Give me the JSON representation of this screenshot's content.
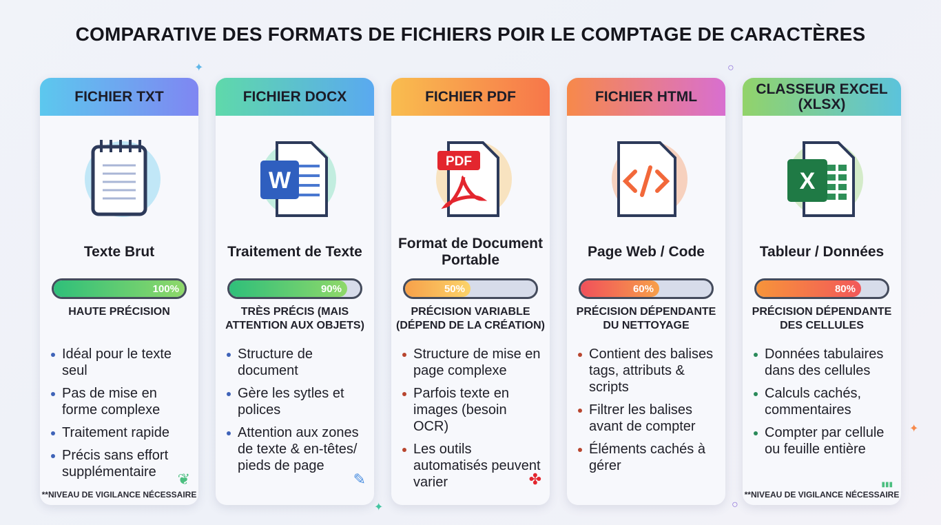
{
  "title": "COMPARATIVE DES FORMATS DE FICHIERS POIR LE COMPTAGE DE CARACTÈRES",
  "cards": [
    {
      "header": "FICHIER TXT",
      "icon": "notepad-icon",
      "subtitle": "Texte Brut",
      "percent": 100,
      "percent_label": "100%",
      "precision": "HAUTE PRÉCISION",
      "bullets": [
        "Idéal pour le texte seul",
        "Pas de mise en forme complexe",
        "Traitement rapide",
        "Précis sans effort supplémentaire"
      ],
      "footer": "**NIVEAU DE VIGILANCE NÉCESSAIRE",
      "corner_icon": "feather-icon",
      "bullet_color": "#3f63b8",
      "head_colors": [
        "#5cc8ee",
        "#7f86f2"
      ],
      "bar_colors": [
        "#2fbf7a",
        "#8fd86a"
      ]
    },
    {
      "header": "FICHIER DOCX",
      "icon": "word-document-icon",
      "subtitle": "Traitement de Texte",
      "percent": 90,
      "percent_label": "90%",
      "precision": "TRÈS PRÉCIS (MAIS ATTENTION AUX OBJETS)",
      "bullets": [
        "Structure de document",
        "Gère les sytles et polices",
        "Attention aux zones de texte & en-têtes/ pieds de page"
      ],
      "footer": "",
      "corner_icon": "pen-icon",
      "bullet_color": "#3f63b8",
      "head_colors": [
        "#5fd9aa",
        "#5aa9f0"
      ],
      "bar_colors": [
        "#2fbf7a",
        "#8fd86a"
      ]
    },
    {
      "header": "FICHIER PDF",
      "icon": "pdf-document-icon",
      "subtitle": "Format de Document Portable",
      "percent": 50,
      "percent_label": "50%",
      "precision": "PRÉCISION VARIABLE (DÉPEND DE LA CRÉATION)",
      "bullets": [
        "Structure de mise en page complexe",
        "Parfois texte en images (besoin OCR)",
        "Les outils automatisés peuvent varier"
      ],
      "footer": "",
      "corner_icon": "acrobat-icon",
      "bullet_color": "#b8452e",
      "head_colors": [
        "#f9bd4f",
        "#f7764a"
      ],
      "bar_colors": [
        "#f7a14a",
        "#fbd36a"
      ]
    },
    {
      "header": "FICHIER HTML",
      "icon": "html-code-icon",
      "subtitle": "Page Web / Code",
      "percent": 60,
      "percent_label": "60%",
      "precision": "PRÉCISION DÉPENDANTE DU NETTOYAGE",
      "bullets": [
        "Contient des balises tags, attributs & scripts",
        "Filtrer les balises avant de compter",
        "Éléments cachés à gérer"
      ],
      "footer": "",
      "corner_icon": "code-icon",
      "bullet_color": "#b8452e",
      "head_colors": [
        "#f7894a",
        "#d86fd0"
      ],
      "bar_colors": [
        "#f0505a",
        "#f7a04a"
      ]
    },
    {
      "header": "CLASSEUR EXCEL (XLSX)",
      "icon": "excel-document-icon",
      "subtitle": "Tableur / Données",
      "percent": 80,
      "percent_label": "80%",
      "precision": "PRÉCISION DÉPENDANTE DES CELLULES",
      "bullets": [
        "Données tabulaires dans des cellules",
        "Calculs cachés, commentaires",
        "Compter par cellule ou feuille entière"
      ],
      "footer": "**NIVEAU DE VIGILANCE NÉCESSAIRE",
      "corner_icon": "bar-chart-icon",
      "bullet_color": "#2a8a5a",
      "head_colors": [
        "#92d36a",
        "#5bc3dc"
      ],
      "bar_colors": [
        "#f7943a",
        "#f2585a"
      ]
    }
  ]
}
